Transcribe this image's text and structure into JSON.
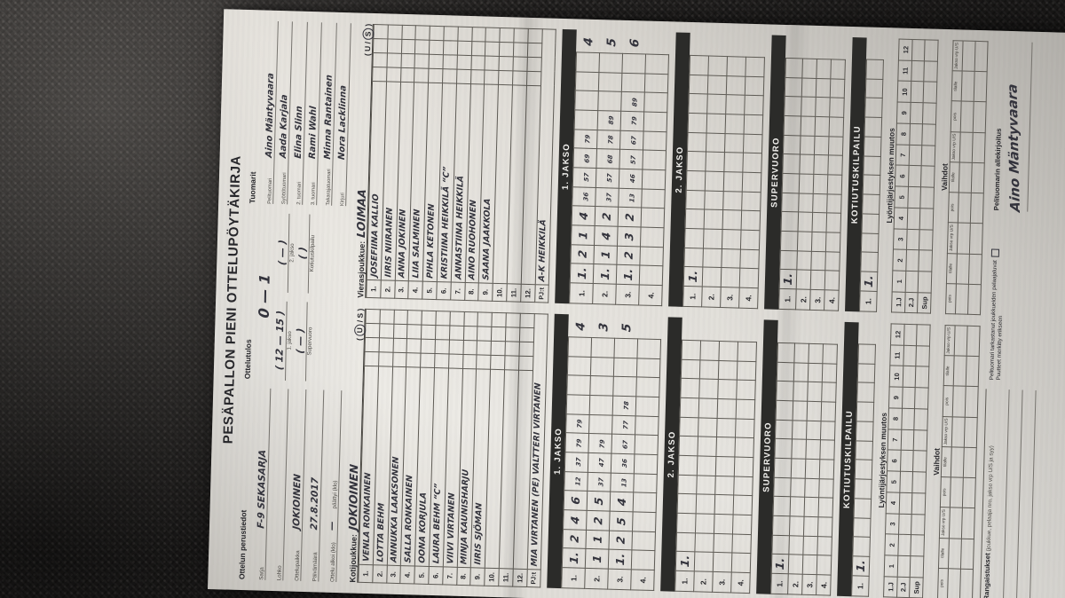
{
  "form": {
    "title": "PESÄPALLON PIENI OTTELUPÖYTÄKIRJA",
    "perustiedot": {
      "heading": "Ottelun perustiedot",
      "fields": [
        {
          "label": "Sarja",
          "value": "F-9 SEKASARJA"
        },
        {
          "label": "Lohko",
          "value": ""
        },
        {
          "label": "Ottelupaikka",
          "value": "JOKIOINEN"
        },
        {
          "label": "Päivämäärä",
          "value": "27.8.2017"
        },
        {
          "label": "Ottelu alkoi (klo)",
          "value": "—",
          "label2": "päättyi (klo)",
          "value2": ""
        }
      ]
    },
    "tulos": {
      "heading": "Ottelutulos",
      "final": "0  —  1",
      "items": [
        {
          "value": "( 12 — 15 )",
          "label": "1. jakso"
        },
        {
          "value": "(  —  )",
          "label": "2. jakso"
        },
        {
          "value": "(  —  )",
          "label": "Supervuoro"
        },
        {
          "value": "(       )",
          "label": "Kotiutuskilpailu"
        }
      ]
    },
    "tuomarit": {
      "heading": "Tuomarit",
      "rows": [
        {
          "label": "Pelituomari",
          "value": "Aino Mäntyvaara"
        },
        {
          "label": "Syöttötuomari",
          "value": "Aada Karjala"
        },
        {
          "label": "2. tuomari",
          "value": "Elina Slinn"
        },
        {
          "label": "3. tuomari",
          "value": "Rami Wahl"
        },
        {
          "label": "Takarajatuomari",
          "value": "Minna Rantainen"
        },
        {
          "label": "Kirjuri",
          "value": "Nora Lacklinna"
        }
      ]
    },
    "sections": {
      "jakso1": "1. JAKSO",
      "jakso2": "2. JAKSO",
      "supervuoro": "SUPERVUORO",
      "kotiutus": "KOTIUTUSKILPAILU",
      "lyonti": "Lyöntijärjestyksen muutos",
      "vaihdot": "Vaihdot"
    },
    "teams": [
      {
        "role_label": "Kotijoukkue:",
        "name": "JOKIOINEN",
        "us_circled": "U",
        "pj_label": "PJ:t",
        "pj": "MIA VIRTANEN (PE)  VALTTERI VIRTANEN",
        "roster": [
          [
            "1.",
            "VENLA RONKAINEN"
          ],
          [
            "2.",
            "LOTTA BEHM"
          ],
          [
            "3.",
            "ANNUKKA LAAKSONEN"
          ],
          [
            "4.",
            "SALLA RONKAINEN"
          ],
          [
            "5.",
            "OONA KORJULA"
          ],
          [
            "6.",
            "LAURA BEHM  “C”"
          ],
          [
            "7.",
            "VIIVI VIRTANEN"
          ],
          [
            "8.",
            "MINJA KAUNISHARJU"
          ],
          [
            "9.",
            "IIRIS SJÖMAN"
          ],
          [
            "10.",
            ""
          ],
          [
            "11.",
            ""
          ],
          [
            "12.",
            ""
          ]
        ],
        "grids": {
          "jakso1": [
            [
              "1.",
              [
                "1.",
                "2",
                "4",
                "6",
                "1|2",
                "3|7",
                "7|9",
                "7|9"
              ],
              "4"
            ],
            [
              "2.",
              [
                "1",
                "1",
                "2",
                "5",
                "3|7",
                "4|7",
                "7|9"
              ],
              "3"
            ],
            [
              "3.",
              [
                "1.",
                "2",
                "5",
                "4",
                "1|3",
                "3|6",
                "6|7",
                "7|7",
                "7|8"
              ],
              "5"
            ],
            [
              "4.",
              [],
              ""
            ]
          ],
          "jakso2": [
            [
              "1.",
              [
                "1."
              ],
              ""
            ],
            [
              "2.",
              [],
              ""
            ],
            [
              "3.",
              [],
              ""
            ],
            [
              "4.",
              [],
              ""
            ]
          ],
          "supervuoro": [
            [
              "1.",
              [
                "1."
              ],
              ""
            ],
            [
              "2.",
              [],
              ""
            ],
            [
              "3.",
              [],
              ""
            ],
            [
              "4.",
              [],
              ""
            ]
          ],
          "kotiutus": [
            [
              "1.",
              [
                "1."
              ],
              ""
            ]
          ]
        }
      },
      {
        "role_label": "Vierasjoukkue:",
        "name": "LOIMAA",
        "us_circled": "S",
        "pj_label": "PJ:t",
        "pj": "A-K  HEIKKILÄ",
        "roster": [
          [
            "1.",
            "JOSEFIINA KALLIO"
          ],
          [
            "2.",
            "IIRIS NIIRANEN"
          ],
          [
            "3.",
            "ANNA JOKINEN"
          ],
          [
            "4.",
            "LIIA SALMINEN"
          ],
          [
            "5.",
            "PIHLA KETONEN"
          ],
          [
            "6.",
            "KRISTIINA HEIKKILÄ  “C”"
          ],
          [
            "7.",
            "ANNASTIINA HEIKKILÄ"
          ],
          [
            "8.",
            "AINO RUOHONEN"
          ],
          [
            "9.",
            "SAANA JAAKKOLA"
          ],
          [
            "10.",
            ""
          ],
          [
            "11.",
            ""
          ],
          [
            "12.",
            ""
          ]
        ],
        "grids": {
          "jakso1": [
            [
              "1.",
              [
                "1.",
                "2",
                "1",
                "4",
                "3|6",
                "5|7",
                "6|9",
                "7|9"
              ],
              "4"
            ],
            [
              "2.",
              [
                "1.",
                "1",
                "4",
                "2",
                "3|7",
                "5|7",
                "6|8",
                "7|8",
                "8|9"
              ],
              "5"
            ],
            [
              "3.",
              [
                "1.",
                "2",
                "3",
                "2",
                "1|3",
                "4|6",
                "5|7",
                "6|7",
                "7|9",
                "8|9"
              ],
              "6"
            ],
            [
              "4.",
              [],
              ""
            ]
          ],
          "jakso2": [
            [
              "1.",
              [
                "1."
              ],
              ""
            ],
            [
              "2.",
              [],
              ""
            ],
            [
              "3.",
              [],
              ""
            ],
            [
              "4.",
              [],
              ""
            ]
          ],
          "supervuoro": [
            [
              "1.",
              [
                "1."
              ],
              ""
            ],
            [
              "2.",
              [],
              ""
            ],
            [
              "3.",
              [],
              ""
            ],
            [
              "4.",
              [],
              ""
            ]
          ],
          "kotiutus": [
            [
              "1.",
              [
                "1."
              ],
              ""
            ]
          ]
        }
      }
    ],
    "lyonti_rows": [
      {
        "label": "1.J",
        "cells": [
          "1",
          "2",
          "3",
          "4",
          "5",
          "6",
          "7",
          "8",
          "9",
          "10",
          "11",
          "12"
        ]
      },
      {
        "label": "2.J",
        "cells": []
      },
      {
        "label": "Sup",
        "cells": []
      }
    ],
    "vaihdot_headers": [
      "pois",
      "tilalle",
      "Jakso vrp U/S",
      "pois",
      "tilalle",
      "Jakso vrp U/S",
      "pois",
      "tilalle",
      "Jakso vrp U/S"
    ],
    "bottom": {
      "rangaistukset": "Rangaistukset",
      "rangaistukset_sub": "(joukkue, pelaaja nro, jakso vrp U/S ja syy)",
      "check1": "Pelituomari tarkastanut joukkueiden pelaajaluvat",
      "check2": "Puutteet merkitty erikseen",
      "sign_label": "Pelituomarin allekirjoitus",
      "signature": "Aino Mäntyvaara"
    },
    "colors": {
      "paper": "#e9e6e0",
      "fabric": "#262423",
      "band": "#2b2b29",
      "ink": "#222222",
      "pen": "#33333c"
    }
  }
}
